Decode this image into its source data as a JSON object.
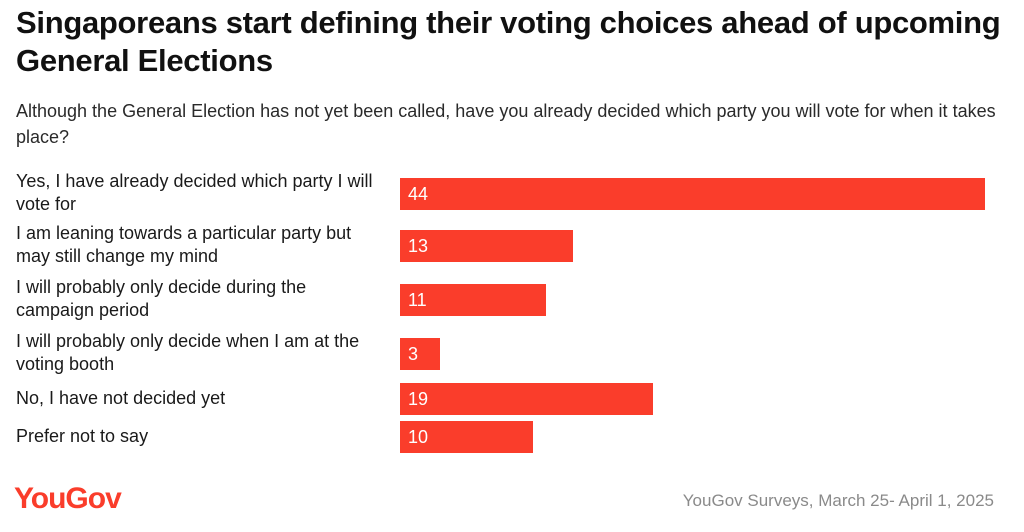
{
  "chart_data": {
    "type": "bar",
    "orientation": "horizontal",
    "title": "Singaporeans start defining their voting choices ahead of upcoming General Elections",
    "subtitle": "Although the General Election has not yet been called, have you already decided which party you will vote for when it takes place?",
    "categories": [
      "Yes, I have already decided which party I will vote for",
      "I am leaning towards a particular party but may still change my mind",
      "I will probably only decide during the campaign period",
      "I will probably only decide when I am at the voting booth",
      "No, I have not decided yet",
      "Prefer not to say"
    ],
    "values": [
      44,
      13,
      11,
      3,
      19,
      10
    ],
    "value_labels": [
      "44",
      "13",
      "11",
      "3",
      "19",
      "10"
    ],
    "xlim": [
      0,
      44
    ],
    "grid": false,
    "legend": "none",
    "bar_color": "#fa3d2b"
  },
  "footer": {
    "logo_text": "YouGov",
    "source": "YouGov Surveys, March 25- April 1, 2025"
  }
}
